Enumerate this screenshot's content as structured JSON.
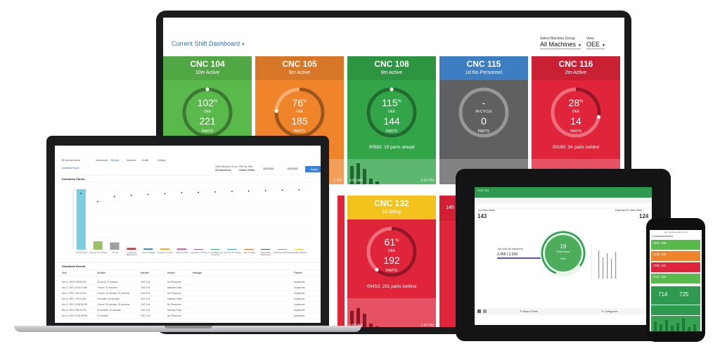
{
  "dashboard": {
    "title": "Current Shift Dashboard",
    "machine_group_label": "Select Machine Group",
    "machine_group_value": "All Machines",
    "view_label": "View",
    "view_value": "OEE",
    "tiles": [
      {
        "name": "CNC 104",
        "status": "10m  Active",
        "oee": "102",
        "oee_label": "OEE",
        "parts": "221",
        "parts_label": "PARTS",
        "footer": "",
        "gauge_fill": 1.0,
        "color": "#5ab94b"
      },
      {
        "name": "CNC 105",
        "status": "9m  Active",
        "oee": "76",
        "oee_label": "OEE",
        "parts": "185",
        "parts_label": "PARTS",
        "footer": "",
        "gauge_fill": 0.76,
        "color": "#f0842b"
      },
      {
        "name": "CNC 108",
        "status": "8m  Active",
        "oee": "115",
        "oee_label": "OEE",
        "parts": "144",
        "parts_label": "PARTS",
        "footer": "00582: 19 parts ahead",
        "gauge_fill": 1.0,
        "color": "#32a548"
      },
      {
        "name": "CNC 115",
        "status": "1d  No Personnel",
        "oee": "-",
        "oee_label": "IN-CYCLE",
        "parts": "0",
        "parts_label": "PARTS",
        "footer": "",
        "gauge_fill": 0.0,
        "color": "#5f6062"
      },
      {
        "name": "CNC 116",
        "status": "2m  Active",
        "oee": "28",
        "oee_label": "OEE",
        "parts": "14",
        "parts_label": "PARTS",
        "footer": "00165: 34 parts behind",
        "gauge_fill": 0.28,
        "color": "#e0243a"
      },
      {
        "name": "CNC 132",
        "status": "1d  Setup",
        "oee": "61",
        "oee_label": "OEE",
        "parts": "192",
        "parts_label": "PARTS",
        "footer": "00453: 201 parts behind",
        "gauge_fill": 0.61,
        "color": "#e0243a"
      }
    ],
    "time_labels": {
      "start": "6:00 AM",
      "end": "2:00 PM",
      "partial": "0 PM"
    },
    "partial_status": "14h"
  },
  "laptop": {
    "brand": "machinemetrics",
    "nav": [
      "Dashboards",
      "Reports",
      "Machines",
      "Health",
      "Settings"
    ],
    "report_title": "Downtime Report",
    "filters": {
      "group_label": "Select Machine Group",
      "group_value": "All Machines",
      "shift_label": "Filter By Shift",
      "shift_value": "Select Shifts",
      "start_date": "11/01/2021",
      "end_date": "12/01/2021",
      "apply": "Apply"
    },
    "pareto_title": "Downtime Pareto",
    "pareto_categories": [
      "No Personnel",
      "Planned Tool Change",
      "No Job",
      "Unplanned Maintenance",
      "Lack of Material",
      "Inspection of Parts",
      "Machine Fault",
      "Inspection of Tooling",
      "Lunch Break / Set Personnel",
      "CoT Set Off / Startup",
      "Lack of Tooling",
      "Preventative Maintenance",
      "Unplanned Tool Change",
      "Load/Pre Material"
    ],
    "pareto_values": [
      100,
      14,
      12,
      3,
      2,
      2,
      2,
      1,
      1,
      1,
      1,
      1,
      1,
      1
    ],
    "events_title": "Downtime Events",
    "columns": [
      "Start",
      "Duration",
      "Machine",
      "Reason",
      "Message",
      "Planned"
    ],
    "rows": [
      [
        "Nov 1, 2021 6:30:54 PM",
        "42 hours, 11 minutes",
        "CNC 104",
        "No Personnel",
        "",
        "Unplanned"
      ],
      [
        "Nov 2, 2021 11:40:13 AM",
        "7 hours, 42 seconds",
        "CNC 104",
        "Machine Fault",
        "",
        "Unplanned"
      ],
      [
        "Nov 2, 2021 2:49:11 PM",
        "4 hours, 16 minutes, 37 seconds",
        "CNC 104",
        "No Personnel",
        "",
        "Unplanned"
      ],
      [
        "Nov 3, 2021 7:00:23 AM",
        "9 minutes, 54 seconds",
        "CNC 104",
        "Machine Fault",
        "",
        "Unplanned"
      ],
      [
        "Nov 4, 2021 12:08:55 PM",
        "4 hours, 35 minutes, 25 seconds",
        "CNC 104",
        "No Personnel",
        "",
        "Unplanned"
      ],
      [
        "Nov 4, 2021 5:58:44 PM",
        "30 minutes, 14 seconds",
        "CNC 104",
        "Machine Fault",
        "",
        "Unplanned"
      ],
      [
        "Nov 5, 2021 12:15:59 PM",
        "27 minutes",
        "CNC 104",
        "No Personnel",
        "",
        "Unplanned"
      ]
    ]
  },
  "tablet": {
    "machine": "CNC 104",
    "left_label": "You Have Made",
    "left_value": "143",
    "right_label": "Expected To Have Made",
    "right_value": "124",
    "gauge_value": "19",
    "gauge_sub": "Parts Ahead",
    "gauge_footer": "Parts",
    "job_label": "Job Total (All Machines)",
    "job_value": "2,456 / 2,500",
    "reject": "Reject Parts",
    "categorize": "Categorize"
  },
  "phone": {
    "brand": "machinemetrics",
    "url": "app.machinemetrics.com",
    "rows": [
      {
        "name": "CNC 105",
        "color": "#5ab94b"
      },
      {
        "name": "CNC 108",
        "color": "#f0842b"
      },
      {
        "name": "CNC 115",
        "color": "#e0243a"
      },
      {
        "name": "CNC 116",
        "color": "#5ab94b"
      }
    ],
    "stat1": "714",
    "stat2": "725"
  }
}
